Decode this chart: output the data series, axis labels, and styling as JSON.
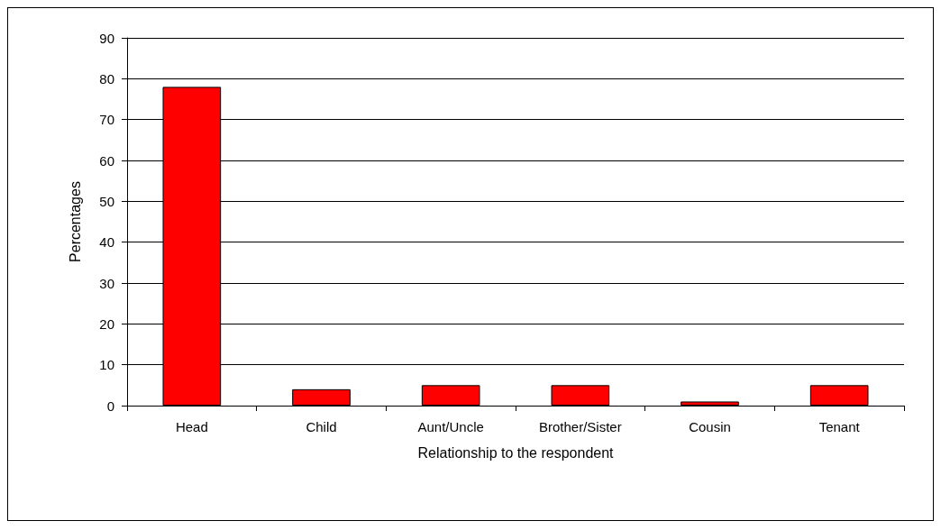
{
  "chart_data": {
    "type": "bar",
    "xlabel": "Relationship to the respondent",
    "ylabel": "Percentages",
    "categories": [
      "Head",
      "Child",
      "Aunt/Uncle",
      "Brother/Sister",
      "Cousin",
      "Tenant"
    ],
    "values": [
      78,
      4,
      5,
      5,
      1,
      5
    ],
    "color": "#ff0000",
    "ylim": [
      0,
      90
    ],
    "yticks": [
      0,
      10,
      20,
      30,
      40,
      50,
      60,
      70,
      80,
      90
    ],
    "grid": "y"
  }
}
